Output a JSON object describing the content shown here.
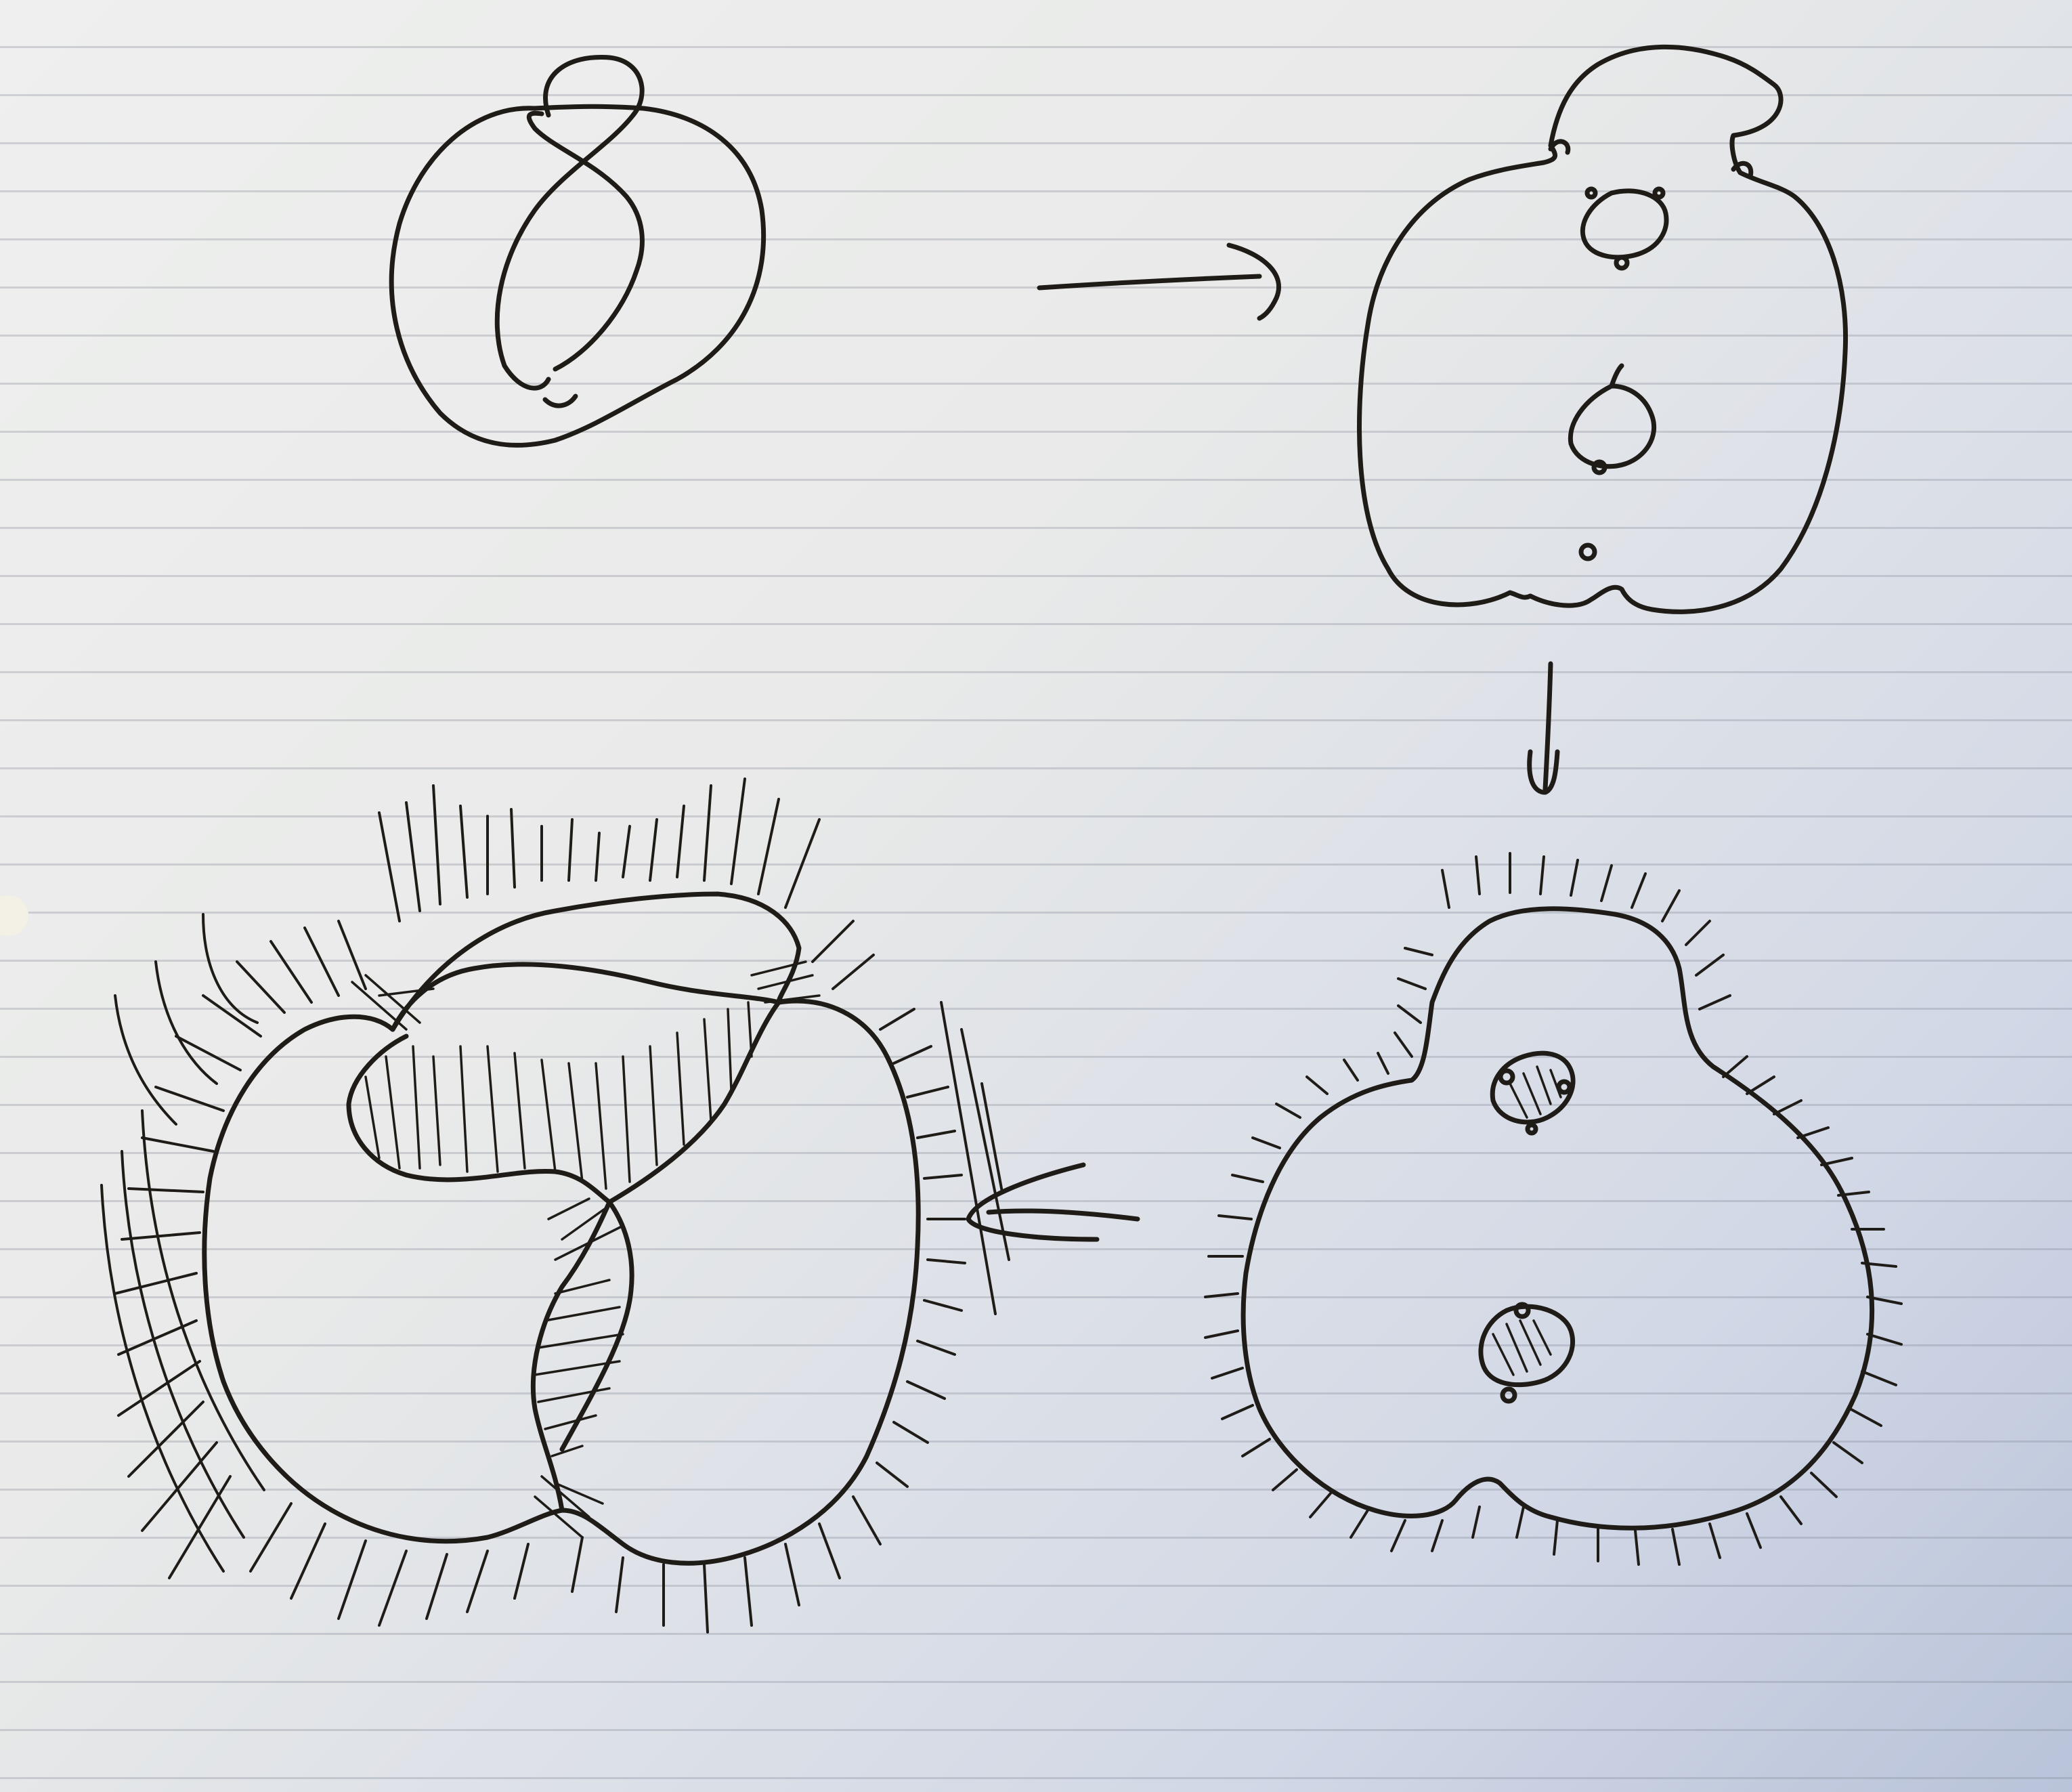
{
  "figure": {
    "panels": [
      {
        "id": "figure-eight-knot",
        "label": ""
      },
      {
        "id": "punctured-surface",
        "label": ""
      },
      {
        "id": "thickened-surface",
        "label": ""
      },
      {
        "id": "knot-complement-shaded",
        "label": ""
      }
    ],
    "arrows": [
      {
        "from": "figure-eight-knot",
        "to": "punctured-surface",
        "direction": "right"
      },
      {
        "from": "punctured-surface",
        "to": "thickened-surface",
        "direction": "down"
      },
      {
        "from": "thickened-surface",
        "to": "knot-complement-shaded",
        "direction": "left"
      }
    ],
    "ink_color": "#1f1c18",
    "paper_color": "#eeefee"
  }
}
